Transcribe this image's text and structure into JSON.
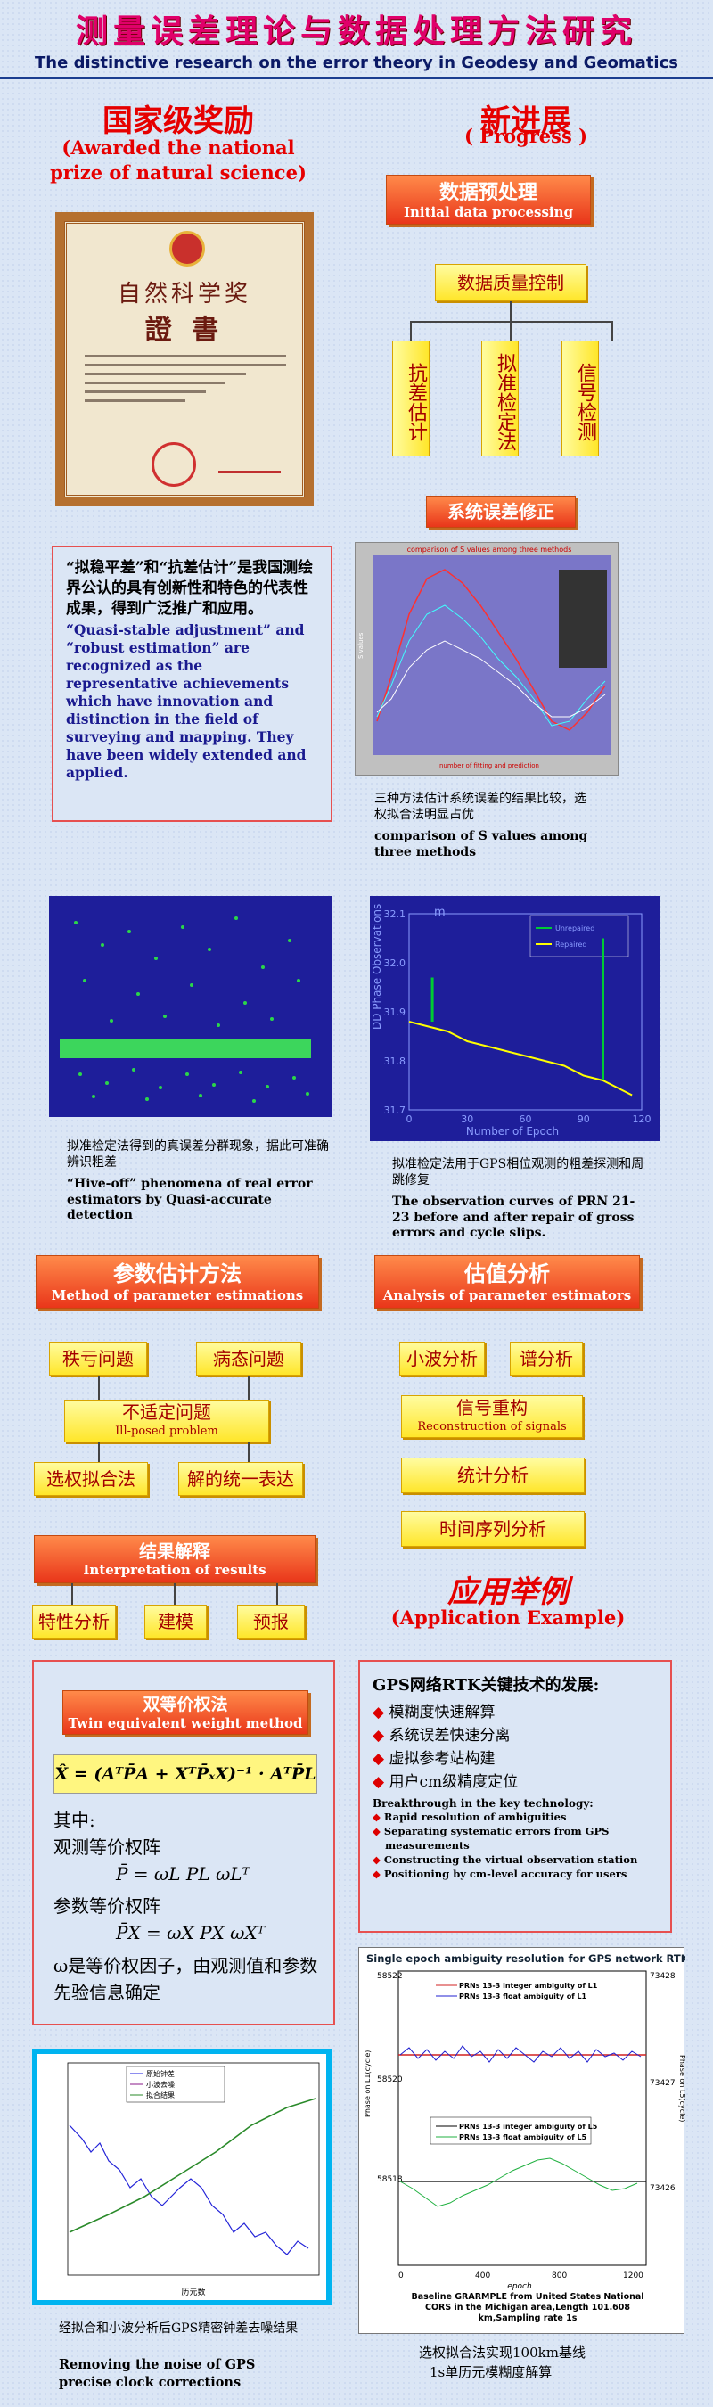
{
  "header": {
    "title": "测量误差理论与数据处理方法研究",
    "subtitle": "The distinctive research on the error theory in Geodesy and Geomatics"
  },
  "award": {
    "title_cn": "国家级奖励",
    "title_en_1": "(Awarded the national",
    "title_en_2": "prize of natural science)",
    "certificate": {
      "heading1": "自然科学奖",
      "heading2": "證 書"
    },
    "text_cn": "“拟稳平差”和“抗差估计”是我国测绘界公认的具有创新性和特色的代表性成果，得到广泛推广和应用。",
    "text_en": "“Quasi-stable adjustment” and “robust estimation” are recognized as the representative achievements which have innovation and distinction in the field of surveying and mapping. They have been widely extended  and applied."
  },
  "progress": {
    "title_cn": "新进展",
    "title_en": "( Progress )",
    "initial_btn_cn": "数据预处理",
    "initial_btn_en": "Initial data processing",
    "quality_box": "数据质量控制",
    "branches": [
      "抗差估计",
      "拟准检定法",
      "信号检测"
    ],
    "sys_error_btn": "系统误差修正",
    "chart1": {
      "title": "comparison of S values among three methods",
      "xlabel": "number of fitting and prediction",
      "ylabel": "S values"
    },
    "chart1_caption_cn": "三种方法估计系统误差的结果比较，选权拟合法明显占优",
    "chart1_caption_en": "comparison of S values among three methods"
  },
  "gross": {
    "caption_cn": "拟准检定法得到的真误差分群现象，据此可准确辨识粗差",
    "caption_en": "“Hive-off” phenomena of real error estimators by Quasi-accurate detection"
  },
  "chart2": {
    "ylabel": "DD Phase Observations",
    "xlabel": "Number of Epoch",
    "unit": "m",
    "legend": [
      "Unrepaired",
      "Repaired"
    ],
    "caption_cn": "拟准检定法用于GPS相位观测的粗差探测和周跳修复",
    "caption_en": "The observation curves of PRN 21-23 before and after repair of gross errors and cycle slips."
  },
  "chart_data": [
    {
      "type": "line",
      "title": "comparison of S values among three methods",
      "xlabel": "number of fitting and prediction",
      "ylabel": "S values"
    },
    {
      "type": "line",
      "xlabel": "Number of Epoch",
      "ylabel": "DD Phase Observations",
      "ylim": [
        31.7,
        32.1
      ],
      "xlim": [
        0,
        120
      ],
      "x_ticks": [
        0,
        30,
        60,
        90,
        120
      ],
      "y_ticks": [
        31.7,
        31.8,
        31.9,
        32.0,
        32.1
      ],
      "series": [
        {
          "name": "Unrepaired",
          "color": "#00cc33"
        },
        {
          "name": "Repaired",
          "color": "#ffff00"
        }
      ],
      "x": [
        0,
        10,
        20,
        30,
        40,
        50,
        60,
        70,
        80,
        90,
        100,
        110,
        115
      ],
      "repaired": [
        31.88,
        31.87,
        31.86,
        31.84,
        31.83,
        31.82,
        31.81,
        31.8,
        31.79,
        31.77,
        31.76,
        31.74,
        31.73
      ]
    }
  ],
  "param": {
    "btn_cn": "参数估计方法",
    "btn_en": "Method of parameter estimations",
    "rank": "秩亏问题",
    "ill": "病态问题",
    "ill_posed_cn": "不适定问题",
    "ill_posed_en": "Ill-posed problem",
    "select": "选权拟合法",
    "unified": "解的统一表达",
    "interp_cn": "结果解释",
    "interp_en": "Interpretation of  results",
    "feature": "特性分析",
    "model": "建模",
    "predict": "预报"
  },
  "analysis": {
    "btn_cn": "估值分析",
    "btn_en": "Analysis of parameter estimators",
    "wavelet": "小波分析",
    "spectrum": "谱分析",
    "recon_cn": "信号重构",
    "recon_en": "Reconstruction of signals",
    "stat": "统计分析",
    "time": "时间序列分析"
  },
  "app": {
    "title_cn": "应用举例",
    "title_en": "(Application Example)"
  },
  "twin": {
    "btn_cn": "双等价权法",
    "btn_en": "Twin equivalent weight method",
    "formula": "X̂ = (AᵀP̄A + XᵀP̄ₓX)⁻¹ · AᵀP̄L",
    "where": "其中:",
    "obs": "观测等价权阵",
    "obs_f": "P̄ = ωL PL ωLᵀ",
    "par": "参数等价权阵",
    "par_f": "P̄X = ωX PX ωXᵀ",
    "desc": "ω是等价权因子，由观测值和参数先验信息确定"
  },
  "rtk": {
    "title_cn": "GPS网络RTK关键技术的发展:",
    "items_cn": [
      "模糊度快速解算",
      "系统误差快速分离",
      "虚拟参考站构建",
      "用户cm级精度定位"
    ],
    "break_title": "Breakthrough in the key technology:",
    "items_en": [
      "Rapid resolution of ambiguities",
      "Separating systematic errors from GPS measurements",
      "Constructing the virtual observation station",
      "Positioning by cm-level accuracy for users"
    ]
  },
  "clock": {
    "legend": [
      "原始钟差",
      "小波去噪",
      "拟合结果"
    ],
    "xlabel": "历元数",
    "caption_cn": "经拟合和小波分析后GPS精密钟差去噪结果",
    "caption_en1": "Removing the noise of GPS",
    "caption_en2": "precise clock corrections"
  },
  "amb": {
    "title": "Single epoch ambiguity resolution for GPS network RTK",
    "leg1": "PRNs  13-3 integer ambiguity of L1",
    "leg2": "PRNs  13-3 float ambiguity of L1",
    "leg3": "PRNs 13-3 integer ambiguity of L5",
    "leg4": "PRNs 13-3 float ambiguity of L5",
    "yl": "Phase on L1(cycle)",
    "yr": "Phase on L5(cycle)",
    "yl_ticks": [
      "58522",
      "58520",
      "58518"
    ],
    "yr_ticks": [
      "73428",
      "73427",
      "73426"
    ],
    "x_ticks": [
      "0",
      "400",
      "800",
      "1200"
    ],
    "xlabel": "epoch",
    "baseline": "Baseline GRARMPLE from United States National CORS in the Michigan area,Length  101.608 km,Sampling rate 1s",
    "caption_cn1": "选权拟合法实现100km基线",
    "caption_cn2": "1s单历元模糊度解算"
  }
}
